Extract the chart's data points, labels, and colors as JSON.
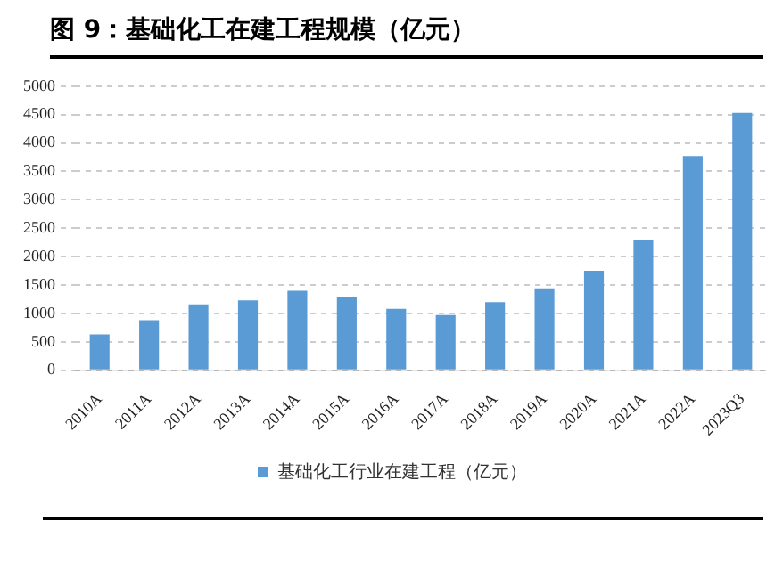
{
  "chart_data": {
    "type": "bar",
    "title": "图 9：基础化工在建工程规模（亿元）",
    "categories": [
      "2010A",
      "2011A",
      "2012A",
      "2013A",
      "2014A",
      "2015A",
      "2016A",
      "2017A",
      "2018A",
      "2019A",
      "2020A",
      "2021A",
      "2022A",
      "2023Q3"
    ],
    "series": [
      {
        "name": "基础化工行业在建工程（亿元）",
        "color": "#5b9bd5",
        "values": [
          630,
          880,
          1160,
          1230,
          1400,
          1280,
          1080,
          970,
          1200,
          1440,
          1750,
          2290,
          3770,
          4530
        ]
      }
    ],
    "ylim": [
      0,
      5000
    ],
    "yticks": [
      0,
      500,
      1000,
      1500,
      2000,
      2500,
      3000,
      3500,
      4000,
      4500,
      5000
    ],
    "grid": "y",
    "legend": "bottom"
  }
}
